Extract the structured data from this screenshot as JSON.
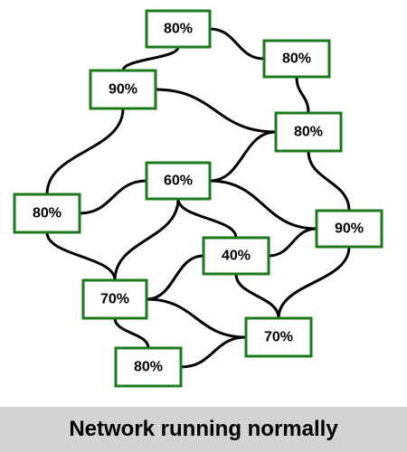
{
  "diagram": {
    "nodes": [
      {
        "id": "n1",
        "label": "80%"
      },
      {
        "id": "n2",
        "label": "80%"
      },
      {
        "id": "n3",
        "label": "90%"
      },
      {
        "id": "n4",
        "label": "80%"
      },
      {
        "id": "n5",
        "label": "60%"
      },
      {
        "id": "n6",
        "label": "80%"
      },
      {
        "id": "n7",
        "label": "90%"
      },
      {
        "id": "n8",
        "label": "40%"
      },
      {
        "id": "n9",
        "label": "70%"
      },
      {
        "id": "n10",
        "label": "70%"
      },
      {
        "id": "n11",
        "label": "80%"
      }
    ],
    "edges": [
      [
        "n1",
        "n2"
      ],
      [
        "n1",
        "n3"
      ],
      [
        "n2",
        "n4"
      ],
      [
        "n3",
        "n4"
      ],
      [
        "n3",
        "n6"
      ],
      [
        "n4",
        "n5"
      ],
      [
        "n4",
        "n7"
      ],
      [
        "n5",
        "n6"
      ],
      [
        "n5",
        "n7"
      ],
      [
        "n5",
        "n8"
      ],
      [
        "n5",
        "n9"
      ],
      [
        "n6",
        "n9"
      ],
      [
        "n7",
        "n8"
      ],
      [
        "n7",
        "n10"
      ],
      [
        "n8",
        "n9"
      ],
      [
        "n8",
        "n10"
      ],
      [
        "n9",
        "n10"
      ],
      [
        "n9",
        "n11"
      ],
      [
        "n11",
        "n10"
      ]
    ]
  },
  "status": {
    "text": "Network running normally"
  },
  "colors": {
    "node_border": "#1e7a1e",
    "status_bg": "#d3d3d3"
  }
}
